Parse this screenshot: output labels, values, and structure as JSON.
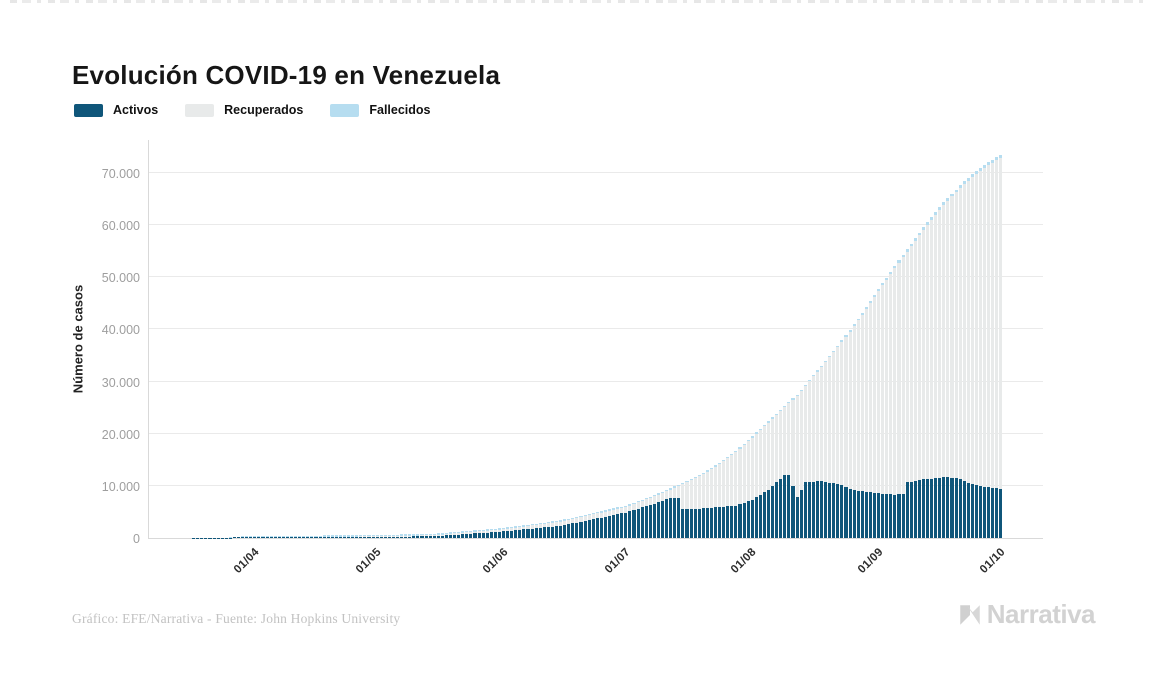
{
  "header": {
    "title": "Evolución COVID-19 en Venezuela"
  },
  "footer": {
    "credit": "Gráfico: EFE/Narrativa - Fuente: John Hopkins University",
    "logo_text": "Narrativa"
  },
  "chart_data": {
    "type": "bar",
    "subtype": "stacked-daily-bars",
    "title": "Evolución COVID-19 en Venezuela",
    "ylabel": "Número de casos",
    "xlabel": "",
    "ylim": [
      0,
      76000
    ],
    "date_range": [
      "17/03",
      "01/10"
    ],
    "x_ticks": [
      "01/04",
      "01/05",
      "01/06",
      "01/07",
      "01/08",
      "01/09",
      "01/10"
    ],
    "y_ticks": [
      {
        "v": 0,
        "label": "0"
      },
      {
        "v": 10000,
        "label": "10.000"
      },
      {
        "v": 20000,
        "label": "20.000"
      },
      {
        "v": 30000,
        "label": "30.000"
      },
      {
        "v": 40000,
        "label": "40.000"
      },
      {
        "v": 50000,
        "label": "50.000"
      },
      {
        "v": 60000,
        "label": "60.000"
      },
      {
        "v": 70000,
        "label": "70.000"
      }
    ],
    "legend": [
      {
        "name": "Activos",
        "color": "#0f567a"
      },
      {
        "name": "Recuperados",
        "color": "#e8eaea"
      },
      {
        "name": "Fallecidos",
        "color": "#b6ddf0"
      }
    ],
    "colors": {
      "activos": "#0f567a",
      "recuperados": "#e8eaea",
      "fallecidos": "#b6ddf0",
      "grid": "#eaeaea",
      "axis": "#d9d9d9"
    },
    "keypoints": {
      "total": [
        [
          "17/03",
          33
        ],
        [
          "01/04",
          145
        ],
        [
          "15/04",
          205
        ],
        [
          "01/05",
          345
        ],
        [
          "15/05",
          545
        ],
        [
          "01/06",
          1700
        ],
        [
          "15/06",
          3150
        ],
        [
          "01/07",
          6000
        ],
        [
          "08/07",
          8050
        ],
        [
          "15/07",
          10400
        ],
        [
          "20/07",
          12330
        ],
        [
          "24/07",
          14260
        ],
        [
          "28/07",
          16570
        ],
        [
          "01/08",
          19440
        ],
        [
          "05/08",
          22300
        ],
        [
          "09/08",
          25300
        ],
        [
          "12/08",
          27470
        ],
        [
          "15/08",
          30370
        ],
        [
          "19/08",
          33960
        ],
        [
          "22/08",
          36870
        ],
        [
          "26/08",
          40970
        ],
        [
          "01/09",
          47750
        ],
        [
          "05/09",
          52170
        ],
        [
          "08/09",
          55360
        ],
        [
          "12/09",
          59630
        ],
        [
          "17/09",
          64420
        ],
        [
          "22/09",
          68450
        ],
        [
          "26/09",
          71050
        ],
        [
          "01/10",
          73530
        ]
      ],
      "activos": [
        [
          "17/03",
          33
        ],
        [
          "01/04",
          135
        ],
        [
          "15/04",
          100
        ],
        [
          "01/05",
          210
        ],
        [
          "15/05",
          340
        ],
        [
          "01/06",
          1260
        ],
        [
          "15/06",
          2320
        ],
        [
          "01/07",
          4870
        ],
        [
          "08/07",
          6600
        ],
        [
          "12/07",
          7650
        ],
        [
          "14/07",
          7700
        ],
        [
          "15/07",
          5480
        ],
        [
          "20/07",
          5690
        ],
        [
          "24/07",
          5980
        ],
        [
          "28/07",
          6230
        ],
        [
          "01/08",
          7300
        ],
        [
          "05/08",
          9250
        ],
        [
          "09/08",
          12050
        ],
        [
          "10/08",
          12100
        ],
        [
          "12/08",
          7790
        ],
        [
          "14/08",
          10750
        ],
        [
          "18/08",
          10890
        ],
        [
          "22/08",
          10380
        ],
        [
          "26/08",
          9160
        ],
        [
          "01/09",
          8570
        ],
        [
          "05/09",
          8300
        ],
        [
          "07/09",
          8420
        ],
        [
          "08/09",
          10690
        ],
        [
          "12/09",
          11230
        ],
        [
          "17/09",
          11680
        ],
        [
          "20/09",
          11480
        ],
        [
          "22/09",
          11010
        ],
        [
          "24/09",
          10280
        ],
        [
          "26/09",
          9890
        ],
        [
          "01/10",
          9420
        ]
      ],
      "fallecidos": [
        [
          "17/03",
          0
        ],
        [
          "01/04",
          5
        ],
        [
          "01/05",
          10
        ],
        [
          "01/06",
          14
        ],
        [
          "01/07",
          53
        ],
        [
          "15/07",
          96
        ],
        [
          "01/08",
          167
        ],
        [
          "15/08",
          253
        ],
        [
          "01/09",
          398
        ],
        [
          "15/09",
          499
        ],
        [
          "01/10",
          619
        ]
      ]
    }
  }
}
